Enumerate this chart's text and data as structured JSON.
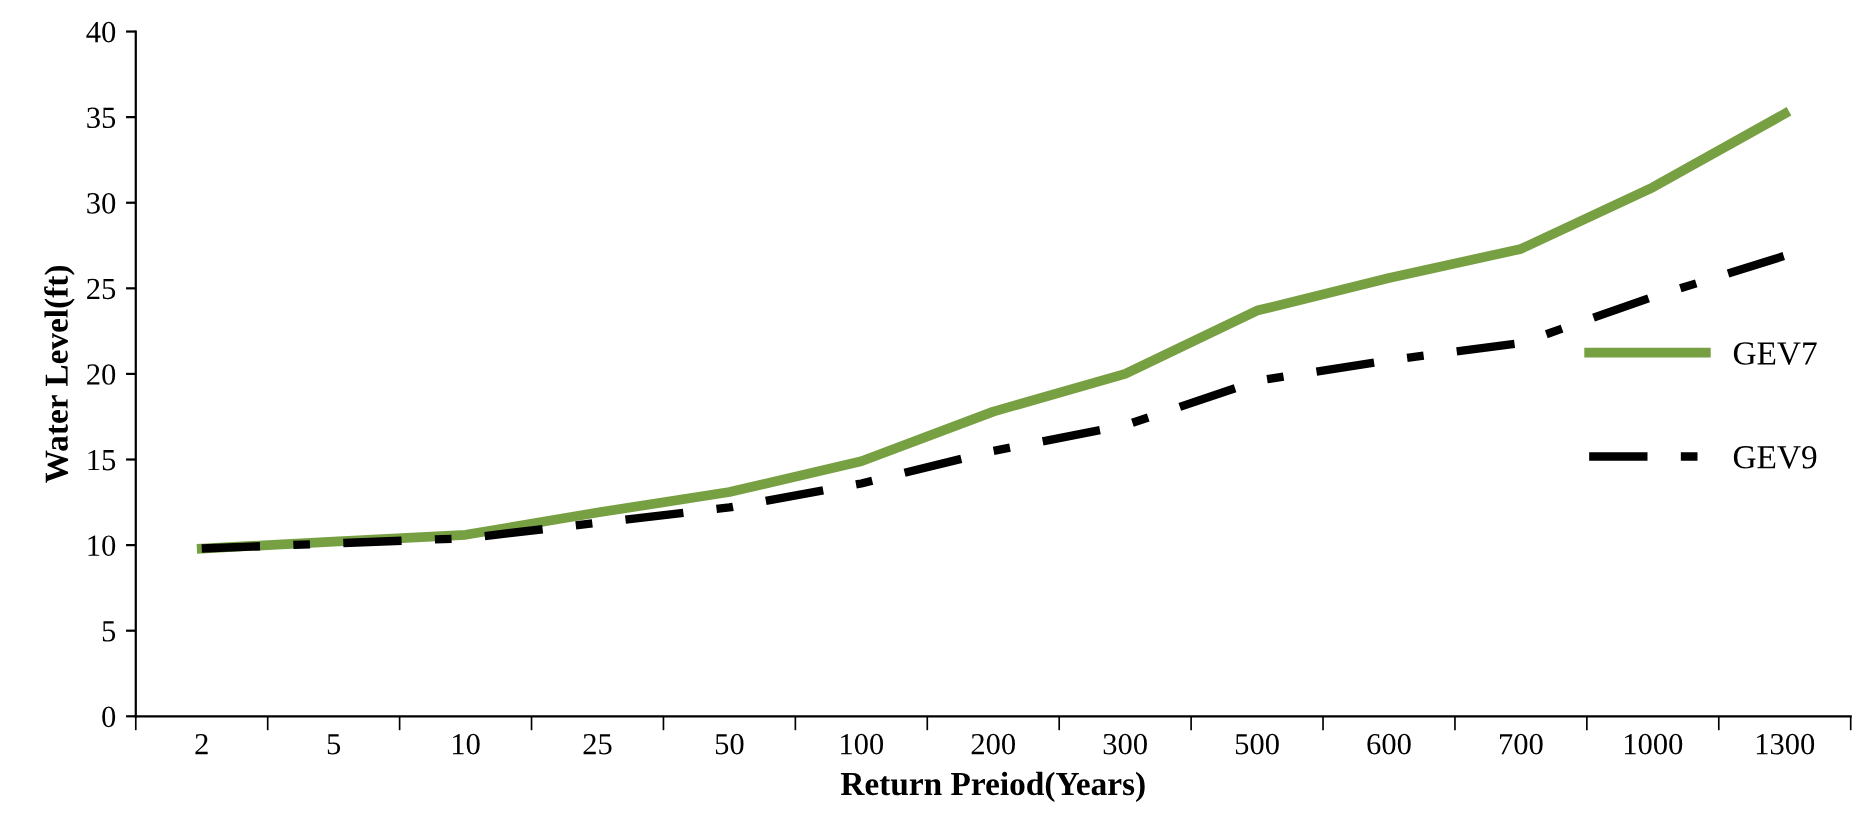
{
  "chart_data": {
    "type": "line",
    "xlabel": "Return Preiod(Years)",
    "ylabel": "Water Level(ft)",
    "categories": [
      "2",
      "5",
      "10",
      "25",
      "50",
      "100",
      "200",
      "300",
      "500",
      "600",
      "700",
      "1000",
      "1300"
    ],
    "series": [
      {
        "name": "GEV7",
        "color": "#77a043",
        "line_style": "solid",
        "values": [
          9.8,
          10.2,
          10.6,
          11.9,
          13.1,
          14.9,
          17.8,
          20.0,
          23.7,
          25.6,
          27.3,
          30.9,
          35.2
        ]
      },
      {
        "name": "GEV9",
        "color": "#000000",
        "line_style": "dashdot",
        "values": [
          9.8,
          10.1,
          10.4,
          11.3,
          12.2,
          13.6,
          15.5,
          17.0,
          19.6,
          20.8,
          21.8,
          24.5,
          26.9
        ]
      }
    ],
    "ylim": [
      0,
      40
    ],
    "yticks": [
      0,
      5,
      10,
      15,
      20,
      25,
      30,
      35,
      40
    ],
    "grid": false,
    "legend": "right",
    "marker": "none"
  }
}
